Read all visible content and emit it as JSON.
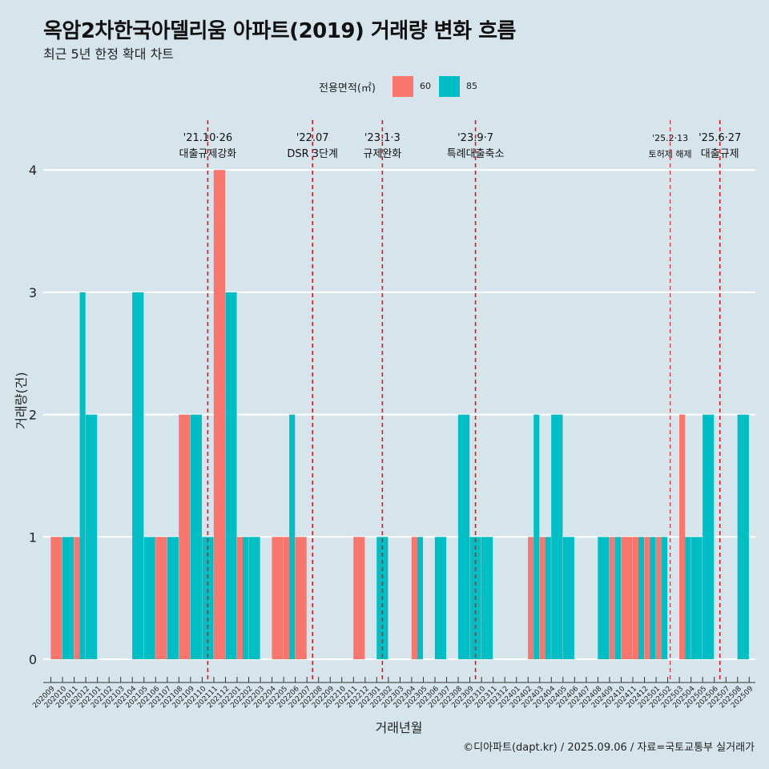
{
  "header": {
    "title": "옥암2차한국아델리움 아파트(2019) 거래량 변화 흐름",
    "subtitle": "최근 5년 한정 확대 차트"
  },
  "caption": "©디아파트(dapt.kr) / 2025.09.06 / 자료=국토교통부 실거래가",
  "colors": {
    "s60": "#F8766D",
    "s85": "#00BFC4",
    "event_line": "#e8141b",
    "grid": "#ffffff"
  },
  "chart_data": {
    "type": "bar",
    "xlabel": "거래년월",
    "ylabel": "거래량(건)",
    "ylim": [
      0,
      4
    ],
    "yticks": [
      0,
      1,
      2,
      3,
      4
    ],
    "grid": true,
    "legend": {
      "title": "전용면적(㎡)",
      "position": "top"
    },
    "categories": [
      "202009",
      "202010",
      "202011",
      "202012",
      "202101",
      "202102",
      "202103",
      "202104",
      "202105",
      "202106",
      "202107",
      "202108",
      "202109",
      "202110",
      "202111",
      "202112",
      "202201",
      "202202",
      "202203",
      "202204",
      "202205",
      "202206",
      "202207",
      "202208",
      "202209",
      "202210",
      "202211",
      "202212",
      "202301",
      "202302",
      "202303",
      "202304",
      "202305",
      "202306",
      "202307",
      "202308",
      "202309",
      "202310",
      "202311",
      "202312",
      "202401",
      "202402",
      "202403",
      "202404",
      "202405",
      "202406",
      "202407",
      "202408",
      "202409",
      "202410",
      "202411",
      "202412",
      "202501",
      "202502",
      "202503",
      "202504",
      "202505",
      "202506",
      "202507",
      "202508",
      "202509"
    ],
    "series": [
      {
        "name": "60",
        "values": [
          1,
          0,
          1,
          0,
          0,
          0,
          0,
          0,
          0,
          1,
          0,
          2,
          0,
          0,
          4,
          0,
          1,
          0,
          0,
          1,
          1,
          1,
          0,
          0,
          0,
          0,
          1,
          0,
          0,
          0,
          0,
          1,
          0,
          0,
          0,
          0,
          0,
          0,
          0,
          0,
          0,
          1,
          1,
          0,
          0,
          0,
          0,
          0,
          1,
          1,
          1,
          1,
          1,
          0,
          2,
          0,
          0,
          0,
          0,
          0,
          0
        ]
      },
      {
        "name": "85",
        "values": [
          0,
          1,
          3,
          2,
          0,
          0,
          0,
          3,
          1,
          0,
          1,
          0,
          2,
          1,
          0,
          3,
          1,
          1,
          0,
          0,
          2,
          0,
          0,
          0,
          0,
          0,
          0,
          0,
          1,
          0,
          0,
          1,
          0,
          1,
          0,
          2,
          1,
          1,
          0,
          0,
          0,
          2,
          1,
          2,
          1,
          0,
          0,
          1,
          1,
          0,
          1,
          1,
          1,
          0,
          1,
          1,
          2,
          0,
          0,
          2,
          0
        ]
      }
    ],
    "events": [
      {
        "date": "'21.10·26",
        "label": "대출규제강화",
        "at": "202110"
      },
      {
        "date": "'22.07",
        "label": "DSR 3단계",
        "at": "202207"
      },
      {
        "date": "'23.1·3",
        "label": "규제완화",
        "at": "202301"
      },
      {
        "date": "'23.9·7",
        "label": "특례대출축소",
        "at": "202309"
      },
      {
        "date": "'25.2·13",
        "label": "토허제 해제",
        "at": "202502"
      },
      {
        "date": "'25.6·27",
        "label": "대출규제",
        "at": "202506"
      }
    ]
  }
}
